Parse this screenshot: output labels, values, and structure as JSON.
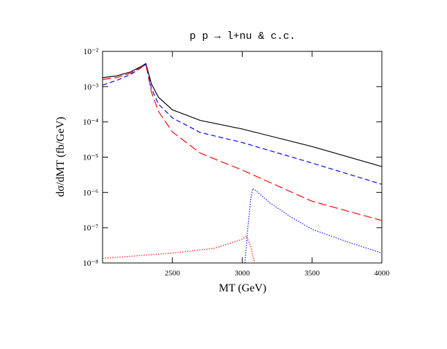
{
  "chart_data": {
    "type": "line",
    "title": "p p → l+nu & c.c.",
    "xlabel": "MT (GeV)",
    "ylabel": "dσ/dMT (fb/GeV)",
    "xlim": [
      2000,
      4000
    ],
    "xticks": [
      2500,
      3000,
      3500,
      4000
    ],
    "ylim": [
      1e-08,
      0.01
    ],
    "yscale": "log",
    "yticks": [
      {
        "value": 1e-08,
        "label": "10⁻⁸"
      },
      {
        "value": 1e-07,
        "label": "10⁻⁷"
      },
      {
        "value": 1e-06,
        "label": "10⁻⁶"
      },
      {
        "value": 1e-05,
        "label": "10⁻⁵"
      },
      {
        "value": 0.0001,
        "label": "10⁻⁴"
      },
      {
        "value": 0.001,
        "label": "10⁻³"
      },
      {
        "value": 0.01,
        "label": "10⁻²"
      }
    ],
    "series": [
      {
        "color": "#000000",
        "dash": "solid",
        "x": [
          2000,
          2100,
          2200,
          2280,
          2310,
          2350,
          2400,
          2500,
          2700,
          3000,
          3500,
          4000
        ],
        "values": [
          0.0018,
          0.002,
          0.0026,
          0.0038,
          0.0045,
          0.0012,
          0.0005,
          0.00022,
          0.00011,
          6.3e-05,
          2e-05,
          5.4e-06
        ]
      },
      {
        "color": "#0000ff",
        "dash": "dashed",
        "x": [
          2000,
          2100,
          2200,
          2280,
          2310,
          2350,
          2400,
          2500,
          2700,
          3000,
          3500,
          4000
        ],
        "values": [
          0.0011,
          0.0015,
          0.0022,
          0.0035,
          0.0043,
          0.0009,
          0.00032,
          0.00013,
          5e-05,
          2.6e-05,
          6.8e-06,
          1.7e-06
        ]
      },
      {
        "color": "#ff0000",
        "dash": "longdash",
        "x": [
          2000,
          2100,
          2200,
          2280,
          2310,
          2350,
          2400,
          2500,
          2700,
          3000,
          3500,
          4000
        ],
        "values": [
          0.0016,
          0.0018,
          0.0024,
          0.0036,
          0.0042,
          0.0007,
          0.0002,
          5.2e-05,
          1.3e-05,
          4.3e-06,
          5.6e-07,
          1.6e-07
        ]
      },
      {
        "color": "#0000ff",
        "dash": "dotted",
        "x": [
          3020,
          3040,
          3060,
          3075,
          3100,
          3200,
          3350,
          3500,
          3750,
          4000
        ],
        "values": [
          1e-08,
          1e-07,
          6e-07,
          1.3e-06,
          1.1e-06,
          5e-07,
          2e-07,
          9e-08,
          4e-08,
          1.9e-08
        ]
      },
      {
        "color": "#ff0000",
        "dash": "dotted",
        "x": [
          2000,
          2250,
          2500,
          2800,
          3000,
          3030,
          3060,
          3090
        ],
        "values": [
          1.35e-08,
          1.6e-08,
          1.9e-08,
          2.6e-08,
          4.7e-08,
          5.8e-08,
          3e-08,
          1e-08
        ]
      }
    ]
  }
}
